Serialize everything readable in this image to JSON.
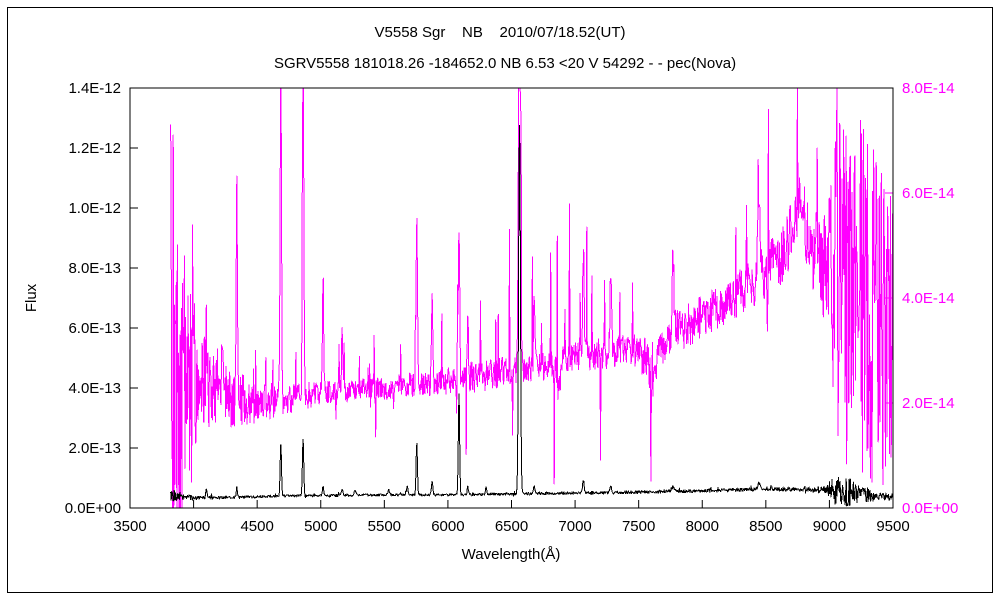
{
  "chart_data": {
    "type": "line",
    "title": "V5558 Sgr    NB    2010/07/18.52(UT)",
    "subtitle": "SGRV5558 181018.26 -184652.0 NB 6.53 <20 V 54292 - - pec(Nova)",
    "xlabel": "Wavelength(Å)",
    "ylabel": "Flux",
    "background": "#ffffff",
    "grid": false,
    "legend": "none",
    "noise_seed": 20100718,
    "x_axis": {
      "min": 3500,
      "max": 9500,
      "ticks": [
        {
          "value": 3500,
          "label": "3500"
        },
        {
          "value": 4000,
          "label": "4000"
        },
        {
          "value": 4500,
          "label": "4500"
        },
        {
          "value": 5000,
          "label": "5000"
        },
        {
          "value": 5500,
          "label": "5500"
        },
        {
          "value": 6000,
          "label": "6000"
        },
        {
          "value": 6500,
          "label": "6500"
        },
        {
          "value": 7000,
          "label": "7000"
        },
        {
          "value": 7500,
          "label": "7500"
        },
        {
          "value": 8000,
          "label": "8000"
        },
        {
          "value": 8500,
          "label": "8500"
        },
        {
          "value": 9000,
          "label": "9000"
        },
        {
          "value": 9500,
          "label": "9500"
        }
      ]
    },
    "left_axis": {
      "min": 0,
      "max": 1.4e-12,
      "color": "#000000",
      "ticks": [
        {
          "value": 0,
          "label": "0.0E+00"
        },
        {
          "value": 2e-13,
          "label": "2.0E-13"
        },
        {
          "value": 4e-13,
          "label": "4.0E-13"
        },
        {
          "value": 6e-13,
          "label": "6.0E-13"
        },
        {
          "value": 8e-13,
          "label": "8.0E-13"
        },
        {
          "value": 1e-12,
          "label": "1.0E-12"
        },
        {
          "value": 1.2e-12,
          "label": "1.2E-12"
        },
        {
          "value": 1.4e-12,
          "label": "1.4E-12"
        }
      ]
    },
    "right_axis": {
      "min": 0,
      "max": 8e-14,
      "color": "#ff00ff",
      "ticks": [
        {
          "value": 0,
          "label": "0.0E+00"
        },
        {
          "value": 2e-14,
          "label": "2.0E-14"
        },
        {
          "value": 4e-14,
          "label": "4.0E-14"
        },
        {
          "value": 6e-14,
          "label": "6.0E-14"
        },
        {
          "value": 8e-14,
          "label": "8.0E-14"
        }
      ]
    },
    "series": [
      {
        "name": "spectrum-magenta-right-axis",
        "axis": "right",
        "color": "#ff00ff",
        "x_start": 3820,
        "x_end": 9500,
        "step": 4,
        "spike_prob": 0.05,
        "spike_up_frac": 0.75,
        "continuum": [
          [
            3820,
            3e-14
          ],
          [
            3900,
            2.8e-14
          ],
          [
            4000,
            2.6e-14
          ],
          [
            4150,
            2.3e-14
          ],
          [
            4300,
            2.1e-14
          ],
          [
            4500,
            2e-14
          ],
          [
            4700,
            2.05e-14
          ],
          [
            4900,
            2.15e-14
          ],
          [
            5100,
            2.2e-14
          ],
          [
            5300,
            2.25e-14
          ],
          [
            5600,
            2.3e-14
          ],
          [
            5900,
            2.4e-14
          ],
          [
            6200,
            2.5e-14
          ],
          [
            6500,
            2.6e-14
          ],
          [
            6800,
            2.75e-14
          ],
          [
            7100,
            2.9e-14
          ],
          [
            7400,
            3e-14
          ],
          [
            7550,
            2.9e-14
          ],
          [
            7700,
            3.2e-14
          ],
          [
            7900,
            3.5e-14
          ],
          [
            8100,
            3.8e-14
          ],
          [
            8300,
            4.1e-14
          ],
          [
            8500,
            4.5e-14
          ],
          [
            8650,
            4.8e-14
          ],
          [
            8800,
            5e-14
          ],
          [
            8950,
            4.8e-14
          ],
          [
            9100,
            4.2e-14
          ],
          [
            9300,
            3.8e-14
          ],
          [
            9500,
            3.2e-14
          ]
        ],
        "noise_amp": [
          [
            3820,
            4.5e-14
          ],
          [
            3860,
            4e-14
          ],
          [
            3900,
            3.2e-14
          ],
          [
            3980,
            2.2e-14
          ],
          [
            4050,
            1.2e-14
          ],
          [
            4150,
            7e-15
          ],
          [
            4300,
            5.5e-15
          ],
          [
            4500,
            4e-15
          ],
          [
            4700,
            3e-15
          ],
          [
            5000,
            2.2e-15
          ],
          [
            5400,
            2.2e-15
          ],
          [
            5800,
            2.5e-15
          ],
          [
            6200,
            3e-15
          ],
          [
            6600,
            3e-15
          ],
          [
            7000,
            3e-15
          ],
          [
            7400,
            3e-15
          ],
          [
            7600,
            4.5e-15
          ],
          [
            7900,
            4e-15
          ],
          [
            8300,
            4.5e-15
          ],
          [
            8600,
            5.5e-15
          ],
          [
            8850,
            7e-15
          ],
          [
            8980,
            1.4e-14
          ],
          [
            9060,
            3.2e-14
          ],
          [
            9200,
            3.6e-14
          ],
          [
            9380,
            3.2e-14
          ],
          [
            9500,
            2.6e-14
          ]
        ],
        "spike_amp": [
          [
            3820,
            2e-14
          ],
          [
            4100,
            1.2e-14
          ],
          [
            4400,
            8e-15
          ],
          [
            4700,
            1.8e-14
          ],
          [
            5000,
            1.2e-14
          ],
          [
            5400,
            1e-14
          ],
          [
            5800,
            1.2e-14
          ],
          [
            6100,
            1.8e-14
          ],
          [
            6400,
            2.8e-14
          ],
          [
            6700,
            2.6e-14
          ],
          [
            7000,
            2.8e-14
          ],
          [
            7300,
            2.4e-14
          ],
          [
            7600,
            2.6e-14
          ],
          [
            7900,
            2.8e-14
          ],
          [
            8200,
            3e-14
          ],
          [
            8500,
            3.2e-14
          ],
          [
            8800,
            3.6e-14
          ],
          [
            9000,
            4e-14
          ],
          [
            9500,
            4e-14
          ]
        ],
        "peaks": [
          [
            4101,
            1.2e-14,
            5
          ],
          [
            4227,
            1e-14,
            5
          ],
          [
            4340,
            4.2e-14,
            5
          ],
          [
            4686,
            7.5e-14,
            5
          ],
          [
            4861,
            8.5e-14,
            5
          ],
          [
            5018,
            2.2e-14,
            5
          ],
          [
            5169,
            1.2e-14,
            5
          ],
          [
            5755,
            3.4e-14,
            5
          ],
          [
            5876,
            1.8e-14,
            5
          ],
          [
            6087,
            3e-14,
            5
          ],
          [
            6157,
            1.2e-14,
            5
          ],
          [
            6563,
            1.1e-13,
            7
          ],
          [
            6678,
            1.4e-14,
            5
          ],
          [
            6870,
            -6e-15,
            12
          ],
          [
            7065,
            2e-14,
            6
          ],
          [
            7280,
            1.4e-14,
            6
          ],
          [
            7610,
            -9e-15,
            20
          ],
          [
            7770,
            1.4e-14,
            8
          ],
          [
            8446,
            1.6e-14,
            8
          ],
          [
            8750,
            8e-15,
            50
          ]
        ]
      },
      {
        "name": "spectrum-black-left-axis",
        "axis": "left",
        "color": "#000000",
        "x_start": 3820,
        "x_end": 9500,
        "step": 4,
        "spike_prob": 0.02,
        "spike_up_frac": 0.8,
        "continuum": [
          [
            3820,
            4.5e-14
          ],
          [
            3900,
            3.8e-14
          ],
          [
            4000,
            3.4e-14
          ],
          [
            4300,
            3.5e-14
          ],
          [
            4700,
            4e-14
          ],
          [
            5100,
            4.2e-14
          ],
          [
            5600,
            4.4e-14
          ],
          [
            6100,
            4.4e-14
          ],
          [
            6600,
            4.8e-14
          ],
          [
            7100,
            5e-14
          ],
          [
            7600,
            5.4e-14
          ],
          [
            8100,
            5.8e-14
          ],
          [
            8500,
            6.4e-14
          ],
          [
            8800,
            6.2e-14
          ],
          [
            9000,
            6e-14
          ],
          [
            9200,
            5e-14
          ],
          [
            9400,
            4e-14
          ],
          [
            9500,
            3.6e-14
          ]
        ],
        "noise_amp": [
          [
            3820,
            2.2e-14
          ],
          [
            3880,
            1.6e-14
          ],
          [
            3950,
            9e-15
          ],
          [
            4050,
            5e-15
          ],
          [
            4400,
            4e-15
          ],
          [
            5000,
            4e-15
          ],
          [
            5600,
            4e-15
          ],
          [
            6200,
            4e-15
          ],
          [
            6800,
            4.5e-15
          ],
          [
            7400,
            5e-15
          ],
          [
            8000,
            5.5e-15
          ],
          [
            8500,
            6e-15
          ],
          [
            8800,
            7e-15
          ],
          [
            8960,
            1.2e-14
          ],
          [
            9040,
            4.5e-14
          ],
          [
            9150,
            5e-14
          ],
          [
            9260,
            3e-14
          ],
          [
            9400,
            1.4e-14
          ],
          [
            9500,
            1.2e-14
          ]
        ],
        "spike_amp": [
          [
            3820,
            1.5e-14
          ],
          [
            4500,
            8e-15
          ],
          [
            6000,
            8e-15
          ],
          [
            7000,
            1e-14
          ],
          [
            8000,
            1.2e-14
          ],
          [
            8800,
            1.5e-14
          ],
          [
            9100,
            4e-14
          ],
          [
            9500,
            2.5e-14
          ]
        ],
        "peaks": [
          [
            4101,
            2.5e-14,
            5
          ],
          [
            4340,
            3.2e-14,
            5
          ],
          [
            4686,
            1.8e-13,
            5
          ],
          [
            4861,
            1.95e-13,
            5
          ],
          [
            5018,
            3e-14,
            5
          ],
          [
            5169,
            2.2e-14,
            6
          ],
          [
            5270,
            1.8e-14,
            7
          ],
          [
            5535,
            1.5e-14,
            7
          ],
          [
            5680,
            2.5e-14,
            7
          ],
          [
            5755,
            1.75e-13,
            5
          ],
          [
            5876,
            4.5e-14,
            5
          ],
          [
            6087,
            3.4e-13,
            5
          ],
          [
            6157,
            3e-14,
            5
          ],
          [
            6300,
            2.2e-14,
            5
          ],
          [
            6563,
            1.24e-12,
            7
          ],
          [
            6678,
            3e-14,
            5
          ],
          [
            7065,
            4.5e-14,
            6
          ],
          [
            7280,
            2.5e-14,
            6
          ],
          [
            7770,
            1.5e-14,
            8
          ],
          [
            8446,
            2e-14,
            8
          ]
        ]
      }
    ]
  }
}
